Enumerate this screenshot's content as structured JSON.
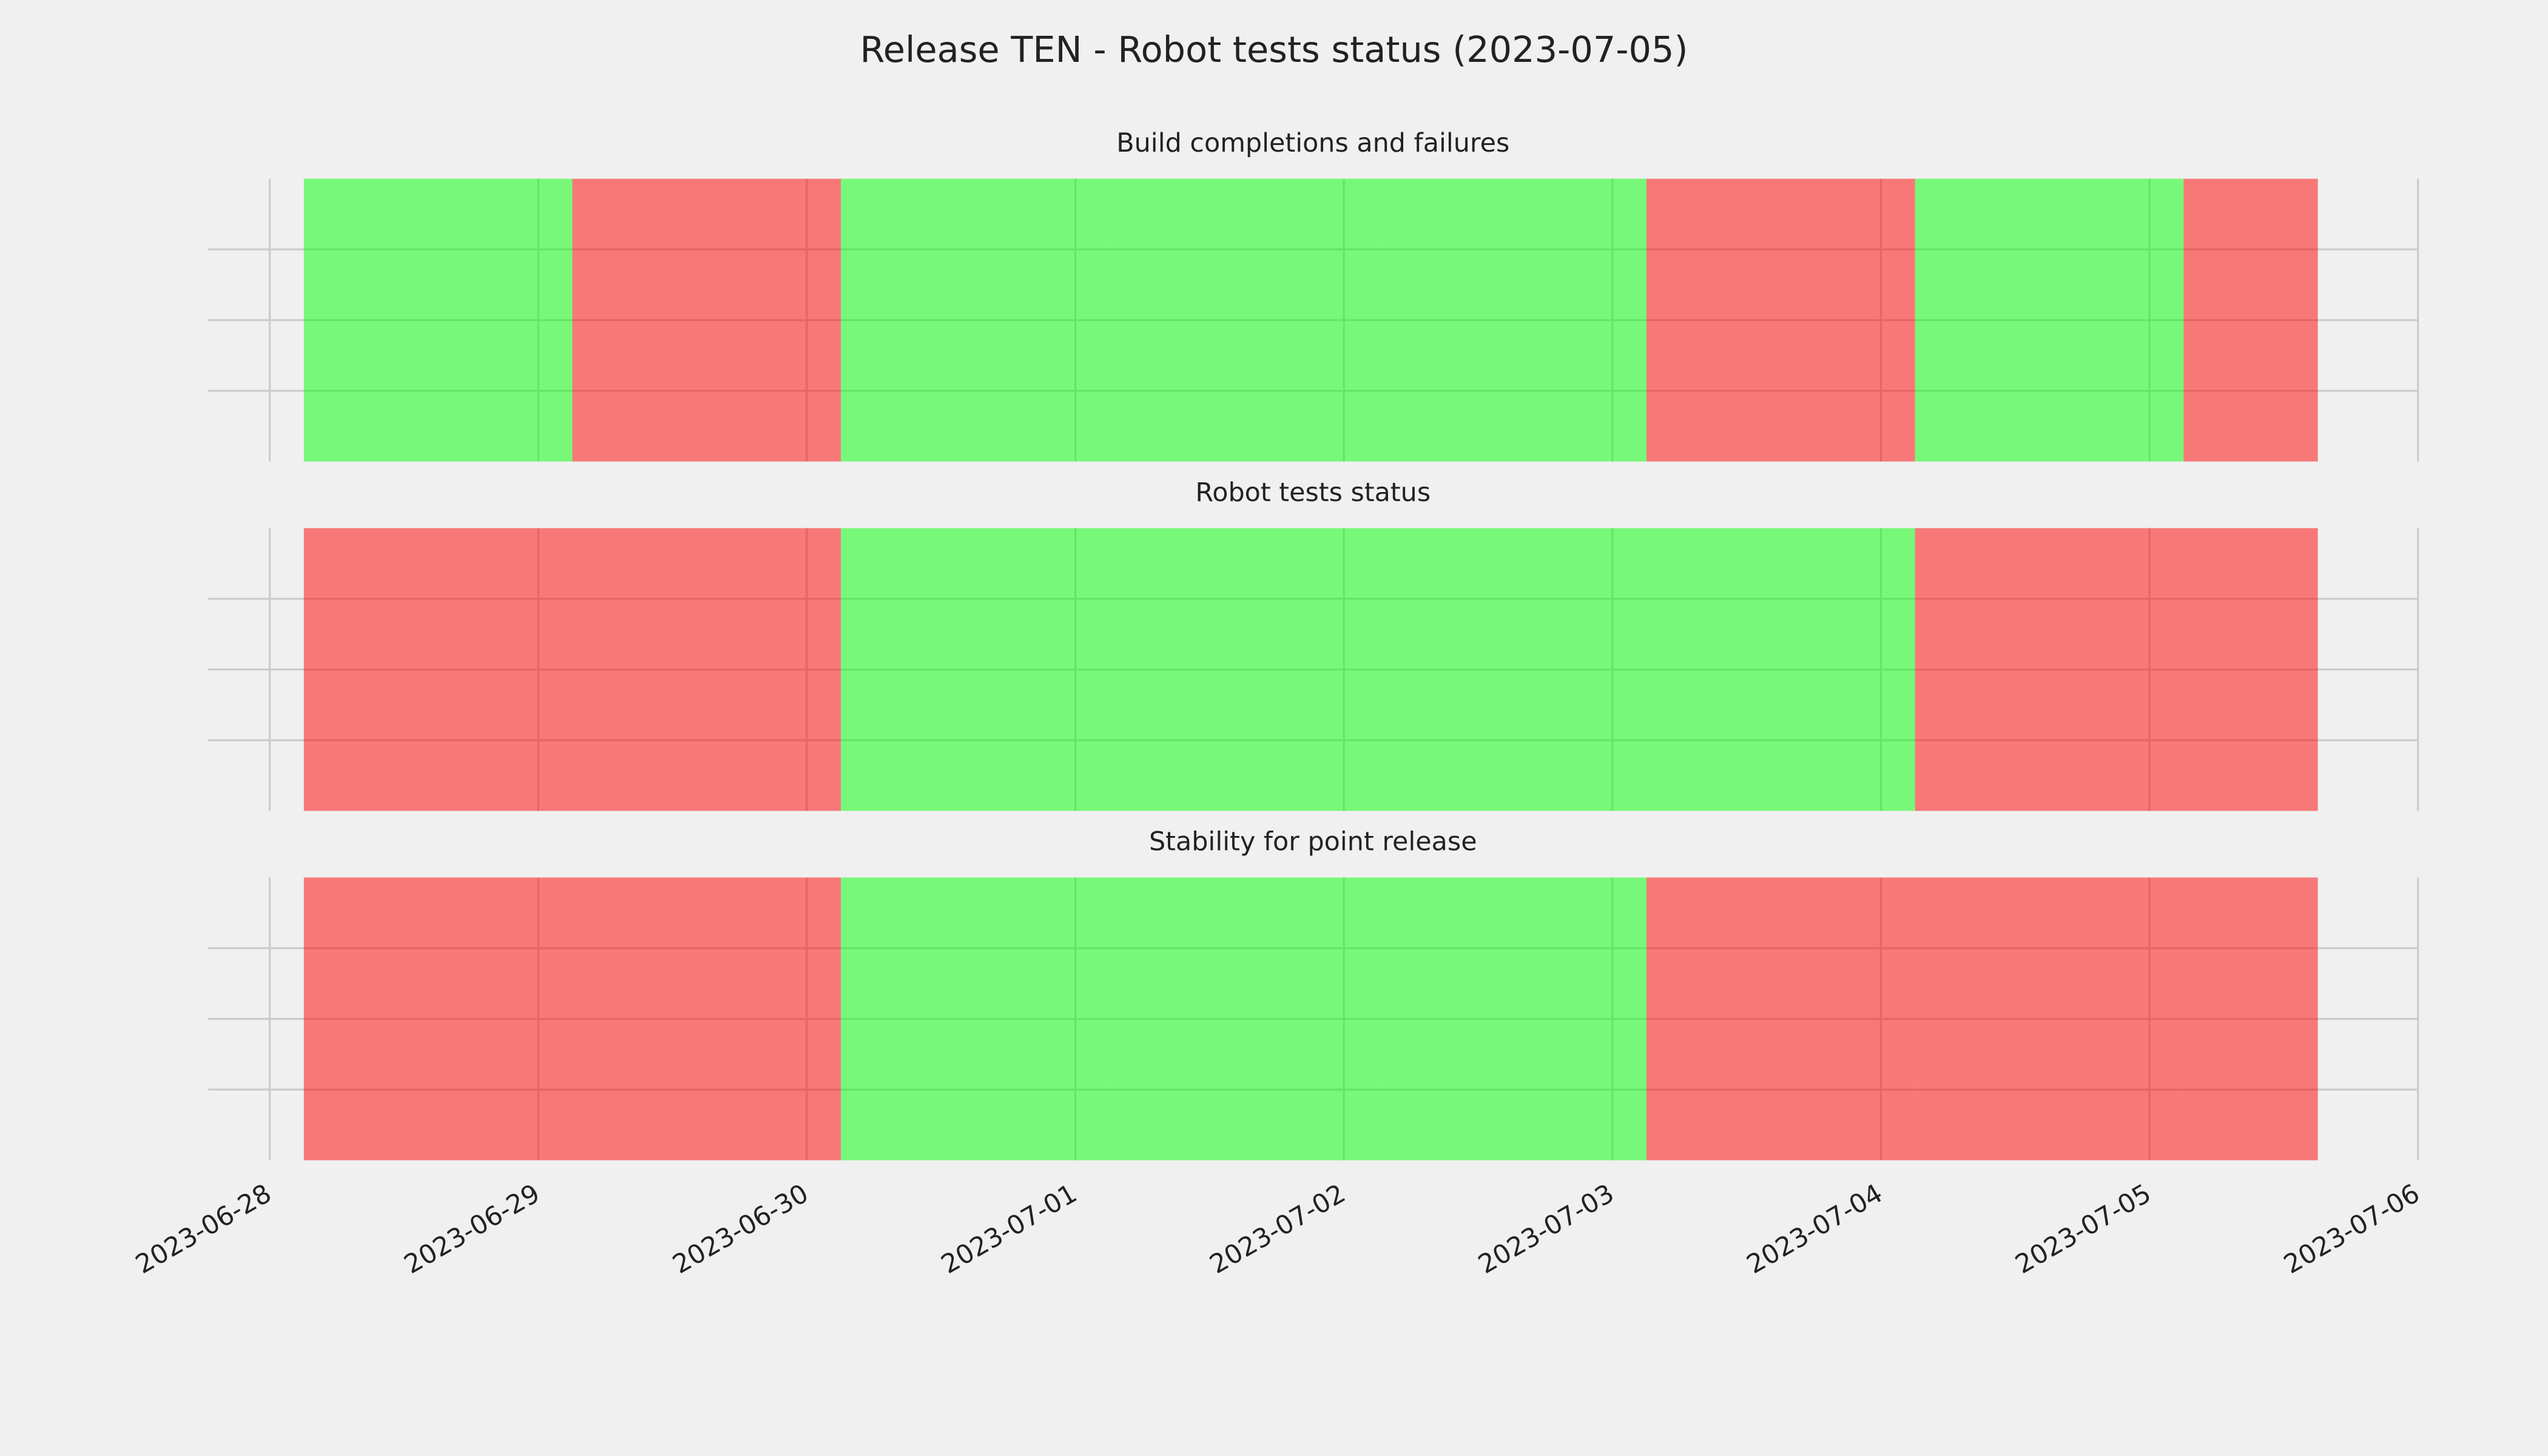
{
  "title": "Release TEN - Robot tests status (2023-07-05)",
  "chart_data": [
    {
      "type": "timeline",
      "title": "Build completions and failures",
      "x": [
        "2023-06-28",
        "2023-06-29",
        "2023-06-30",
        "2023-07-01",
        "2023-07-02",
        "2023-07-03",
        "2023-07-04",
        "2023-07-05"
      ],
      "colors": [
        "#00ff00",
        "#ff0000",
        "#00ff00",
        "#00ff00",
        "#00ff00",
        "#ff0000",
        "#00ff00",
        "#ff0000"
      ],
      "alpha": 0.5,
      "grid": true,
      "xlim": [
        "2023-06-28",
        "2023-07-06"
      ],
      "xticks": [
        "2023-06-28",
        "2023-06-29",
        "2023-06-30",
        "2023-07-01",
        "2023-07-02",
        "2023-07-03",
        "2023-07-04",
        "2023-07-05",
        "2023-07-06"
      ],
      "ylim": [
        0,
        1
      ],
      "yticks": [
        0.25,
        0.5,
        0.75
      ]
    },
    {
      "type": "timeline",
      "title": "Robot tests status",
      "x": [
        "2023-06-28",
        "2023-06-29",
        "2023-06-30",
        "2023-07-01",
        "2023-07-02",
        "2023-07-03",
        "2023-07-04",
        "2023-07-05"
      ],
      "colors": [
        "#ff0000",
        "#ff0000",
        "#00ff00",
        "#00ff00",
        "#00ff00",
        "#00ff00",
        "#ff0000",
        "#ff0000"
      ],
      "alpha": 0.5,
      "grid": true,
      "xlim": [
        "2023-06-28",
        "2023-07-06"
      ],
      "xticks": [
        "2023-06-28",
        "2023-06-29",
        "2023-06-30",
        "2023-07-01",
        "2023-07-02",
        "2023-07-03",
        "2023-07-04",
        "2023-07-05",
        "2023-07-06"
      ],
      "ylim": [
        0,
        1
      ],
      "yticks": [
        0.25,
        0.5,
        0.75
      ]
    },
    {
      "type": "timeline",
      "title": "Stability for point release",
      "x": [
        "2023-06-28",
        "2023-06-29",
        "2023-06-30",
        "2023-07-01",
        "2023-07-02",
        "2023-07-03",
        "2023-07-04",
        "2023-07-05"
      ],
      "colors": [
        "#ff0000",
        "#ff0000",
        "#00ff00",
        "#00ff00",
        "#00ff00",
        "#ff0000",
        "#ff0000",
        "#ff0000"
      ],
      "alpha": 0.5,
      "grid": true,
      "xlim": [
        "2023-06-28",
        "2023-07-06"
      ],
      "xticks": [
        "2023-06-28",
        "2023-06-29",
        "2023-06-30",
        "2023-07-01",
        "2023-07-02",
        "2023-07-03",
        "2023-07-04",
        "2023-07-05",
        "2023-07-06"
      ],
      "ylim": [
        0,
        1
      ],
      "yticks": [
        0.25,
        0.5,
        0.75
      ]
    }
  ]
}
